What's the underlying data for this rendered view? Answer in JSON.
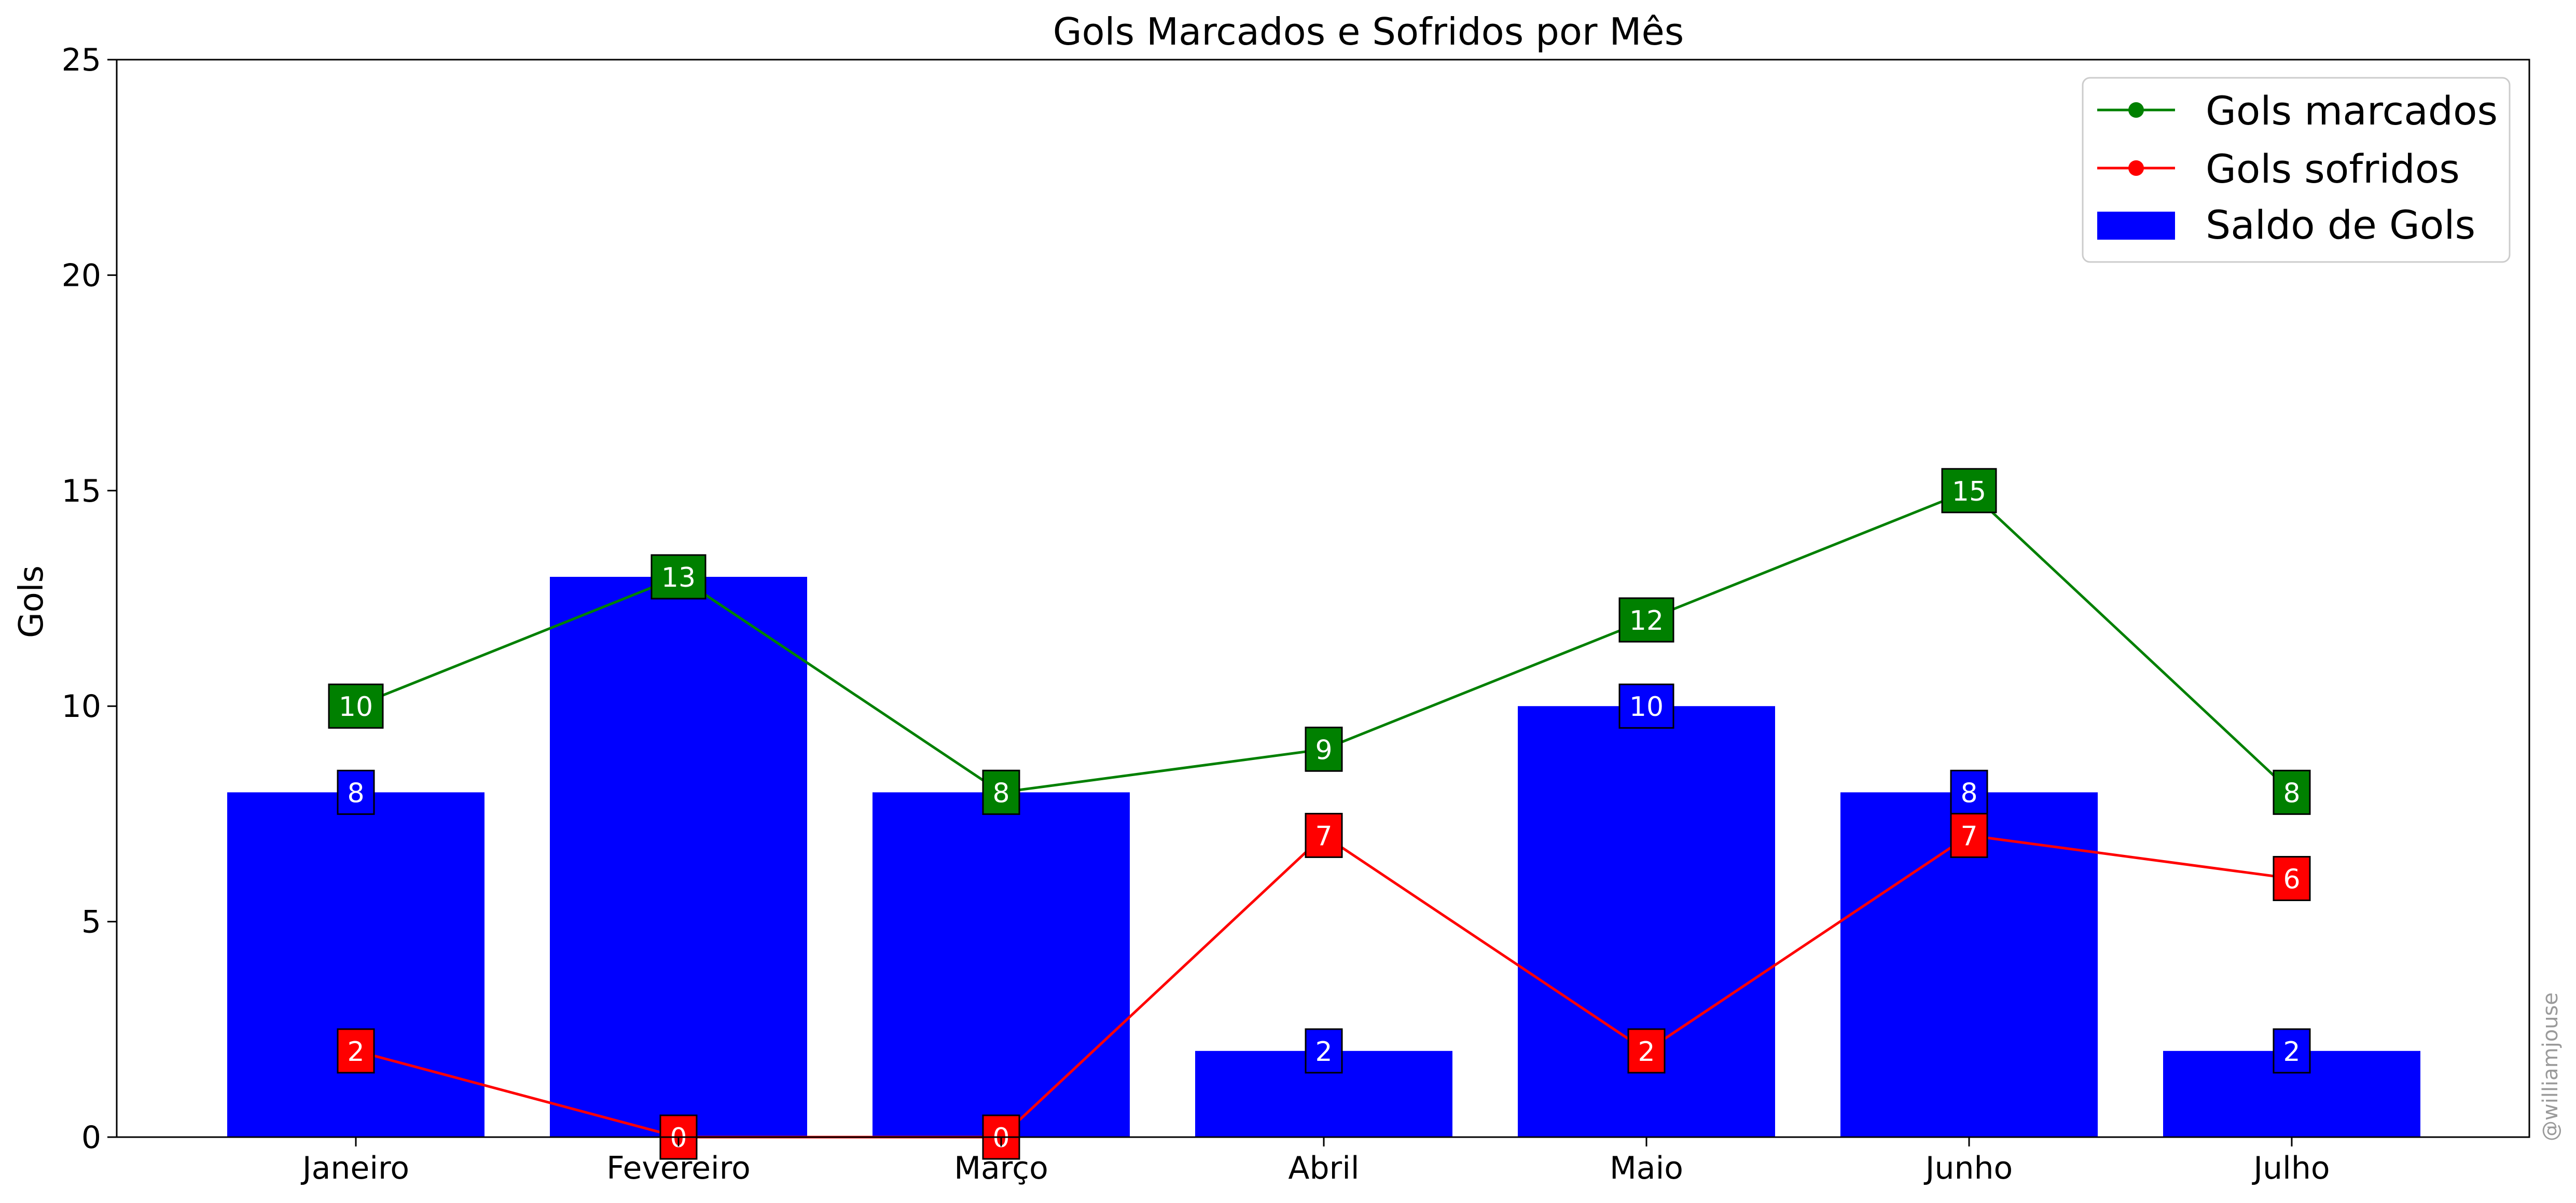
{
  "chart_data": {
    "type": "bar",
    "title": "Gols Marcados e Sofridos por Mês",
    "xlabel": "",
    "ylabel": "Gols",
    "ylim": [
      0,
      25
    ],
    "yticks": [
      0,
      5,
      10,
      15,
      20,
      25
    ],
    "grid": false,
    "legend_position": "top-right",
    "categories": [
      "Janeiro",
      "Fevereiro",
      "Março",
      "Abril",
      "Maio",
      "Junho",
      "Julho"
    ],
    "series": [
      {
        "name": "Gols marcados",
        "kind": "line",
        "marker": "circle",
        "color": "#008000",
        "values": [
          10,
          13,
          8,
          9,
          12,
          15,
          8
        ]
      },
      {
        "name": "Gols sofridos",
        "kind": "line",
        "marker": "circle",
        "color": "#ff0000",
        "values": [
          2,
          0,
          0,
          7,
          2,
          7,
          6
        ]
      },
      {
        "name": "Saldo de Gols",
        "kind": "bar",
        "color": "#0000ff",
        "values": [
          8,
          13,
          8,
          2,
          10,
          8,
          2
        ]
      }
    ],
    "watermark": "@williamjouse"
  }
}
